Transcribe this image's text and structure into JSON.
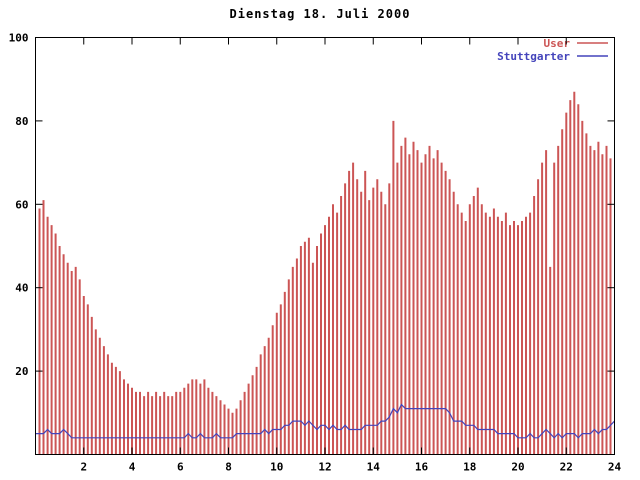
{
  "chart_data": {
    "type": "bar+line",
    "title": "Dienstag 18. Juli 2000",
    "xlabel": "",
    "ylabel": "",
    "xlim": [
      0,
      24
    ],
    "ylim": [
      0,
      100
    ],
    "x_ticks": [
      2,
      4,
      6,
      8,
      10,
      12,
      14,
      16,
      18,
      20,
      22,
      24
    ],
    "y_ticks": [
      0,
      20,
      40,
      60,
      80,
      100
    ],
    "x_unit": "hour of day",
    "sample_interval_minutes": 10,
    "grid": false,
    "legend_position": "top-right",
    "series": [
      {
        "name": "User",
        "style": "impulses",
        "color": "#cc5555",
        "values": [
          62,
          59,
          61,
          57,
          55,
          53,
          50,
          48,
          46,
          44,
          45,
          42,
          38,
          36,
          33,
          30,
          28,
          26,
          24,
          22,
          21,
          20,
          18,
          17,
          16,
          15,
          15,
          14,
          15,
          14,
          15,
          14,
          15,
          14,
          14,
          15,
          15,
          16,
          17,
          18,
          18,
          17,
          18,
          16,
          15,
          14,
          13,
          12,
          11,
          10,
          11,
          13,
          15,
          17,
          19,
          21,
          24,
          26,
          28,
          31,
          34,
          36,
          39,
          42,
          45,
          47,
          50,
          51,
          52,
          46,
          50,
          53,
          55,
          57,
          60,
          58,
          62,
          65,
          68,
          70,
          66,
          63,
          68,
          61,
          64,
          66,
          63,
          60,
          65,
          80,
          70,
          74,
          76,
          72,
          75,
          73,
          70,
          72,
          74,
          71,
          73,
          70,
          68,
          66,
          63,
          60,
          58,
          56,
          60,
          62,
          64,
          60,
          58,
          57,
          59,
          57,
          56,
          58,
          55,
          56,
          55,
          56,
          57,
          58,
          62,
          66,
          70,
          73,
          45,
          70,
          74,
          78,
          82,
          85,
          87,
          84,
          80,
          77,
          74,
          73,
          75,
          72,
          74,
          71,
          73
        ]
      },
      {
        "name": "Stuttgarter",
        "style": "line",
        "color": "#4444bb",
        "values": [
          5,
          5,
          5,
          6,
          5,
          5,
          5,
          6,
          5,
          4,
          4,
          4,
          4,
          4,
          4,
          4,
          4,
          4,
          4,
          4,
          4,
          4,
          4,
          4,
          4,
          4,
          4,
          4,
          4,
          4,
          4,
          4,
          4,
          4,
          4,
          4,
          4,
          4,
          5,
          4,
          4,
          5,
          4,
          4,
          4,
          5,
          4,
          4,
          4,
          4,
          5,
          5,
          5,
          5,
          5,
          5,
          5,
          6,
          5,
          6,
          6,
          6,
          7,
          7,
          8,
          8,
          8,
          7,
          8,
          7,
          6,
          7,
          7,
          6,
          7,
          6,
          6,
          7,
          6,
          6,
          6,
          6,
          7,
          7,
          7,
          7,
          8,
          8,
          9,
          11,
          10,
          12,
          11,
          11,
          11,
          11,
          11,
          11,
          11,
          11,
          11,
          11,
          11,
          10,
          8,
          8,
          8,
          7,
          7,
          7,
          6,
          6,
          6,
          6,
          6,
          5,
          5,
          5,
          5,
          5,
          4,
          4,
          4,
          5,
          4,
          4,
          5,
          6,
          5,
          4,
          5,
          4,
          5,
          5,
          5,
          4,
          5,
          5,
          5,
          6,
          5,
          6,
          6,
          7,
          8
        ]
      }
    ]
  }
}
